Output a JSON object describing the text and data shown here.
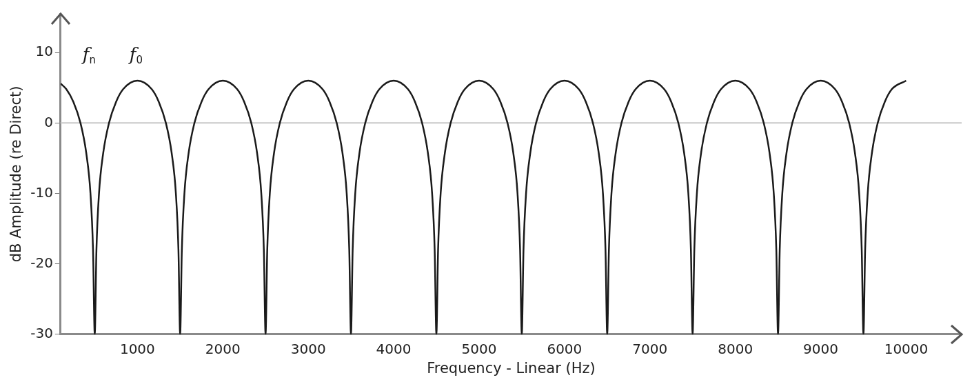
{
  "chart_data": {
    "type": "line",
    "xlabel": "Frequency - Linear (Hz)",
    "ylabel": "dB Amplitude (re Direct)",
    "series": [
      {
        "color": "#1a1a1a",
        "x": [
          100,
          167,
          250,
          333,
          400,
          450,
          480,
          500,
          520,
          550,
          600,
          667,
          750,
          833,
          1000,
          1167,
          1250,
          1333,
          1400,
          1450,
          1480,
          1500,
          1520,
          1550,
          1600,
          1667,
          1750,
          1833,
          2000,
          2167,
          2250,
          2333,
          2400,
          2450,
          2480,
          2500,
          2520,
          2550,
          2600,
          2667,
          2750,
          2833,
          3000,
          3167,
          3250,
          3333,
          3400,
          3450,
          3480,
          3500,
          3520,
          3550,
          3600,
          3667,
          3750,
          3833,
          4000,
          4167,
          4250,
          4333,
          4400,
          4450,
          4480,
          4500,
          4520,
          4550,
          4600,
          4667,
          4750,
          4833,
          5000,
          5167,
          5250,
          5333,
          5400,
          5450,
          5480,
          5500,
          5520,
          5550,
          5600,
          5667,
          5750,
          5833,
          6000,
          6167,
          6250,
          6333,
          6400,
          6450,
          6480,
          6500,
          6520,
          6550,
          6600,
          6667,
          6750,
          6833,
          7000,
          7167,
          7250,
          7333,
          7400,
          7450,
          7480,
          7500,
          7520,
          7550,
          7600,
          7667,
          7750,
          7833,
          8000,
          8167,
          8250,
          8333,
          8400,
          8450,
          8480,
          8500,
          8520,
          8550,
          8600,
          8667,
          8750,
          8833,
          9000,
          9167,
          9250,
          9333,
          9400,
          9450,
          9480,
          9500,
          9520,
          9550,
          9600,
          9667,
          9750,
          9833,
          10000
        ],
        "values": [
          5.6,
          4.8,
          3,
          0,
          -4.2,
          -10,
          -18,
          -30,
          -18,
          -10,
          -4.2,
          0,
          3,
          4.8,
          6,
          4.8,
          3,
          0,
          -4.2,
          -10,
          -18,
          -30,
          -18,
          -10,
          -4.2,
          0,
          3,
          4.8,
          6,
          4.8,
          3,
          0,
          -4.2,
          -10,
          -18,
          -30,
          -18,
          -10,
          -4.2,
          0,
          3,
          4.8,
          6,
          4.8,
          3,
          0,
          -4.2,
          -10,
          -18,
          -30,
          -18,
          -10,
          -4.2,
          0,
          3,
          4.8,
          6,
          4.8,
          3,
          0,
          -4.2,
          -10,
          -18,
          -30,
          -18,
          -10,
          -4.2,
          0,
          3,
          4.8,
          6,
          4.8,
          3,
          0,
          -4.2,
          -10,
          -18,
          -30,
          -18,
          -10,
          -4.2,
          0,
          3,
          4.8,
          6,
          4.8,
          3,
          0,
          -4.2,
          -10,
          -18,
          -30,
          -18,
          -10,
          -4.2,
          0,
          3,
          4.8,
          6,
          4.8,
          3,
          0,
          -4.2,
          -10,
          -18,
          -30,
          -18,
          -10,
          -4.2,
          0,
          3,
          4.8,
          6,
          4.8,
          3,
          0,
          -4.2,
          -10,
          -18,
          -30,
          -18,
          -10,
          -4.2,
          0,
          3,
          4.8,
          6,
          4.8,
          3,
          0,
          -4.2,
          -10,
          -18,
          -30,
          -18,
          -10,
          -4.2,
          0,
          3,
          4.8,
          6
        ]
      }
    ],
    "xlim": [
      100,
      10650
    ],
    "xticks": [
      1000,
      2000,
      3000,
      4000,
      5000,
      6000,
      7000,
      8000,
      9000,
      10000
    ],
    "ylim": [
      -30,
      15.5
    ],
    "yticks": [
      -30,
      -20,
      -10,
      0,
      10
    ],
    "ref_lines": [
      {
        "axis": "y",
        "value": 0,
        "color": "#c8c8c8"
      }
    ],
    "annotations": [
      "f$_{n}$",
      "f$_{0}$"
    ],
    "grid": false,
    "legend": false,
    "marker": "none",
    "line_style": "solid"
  }
}
